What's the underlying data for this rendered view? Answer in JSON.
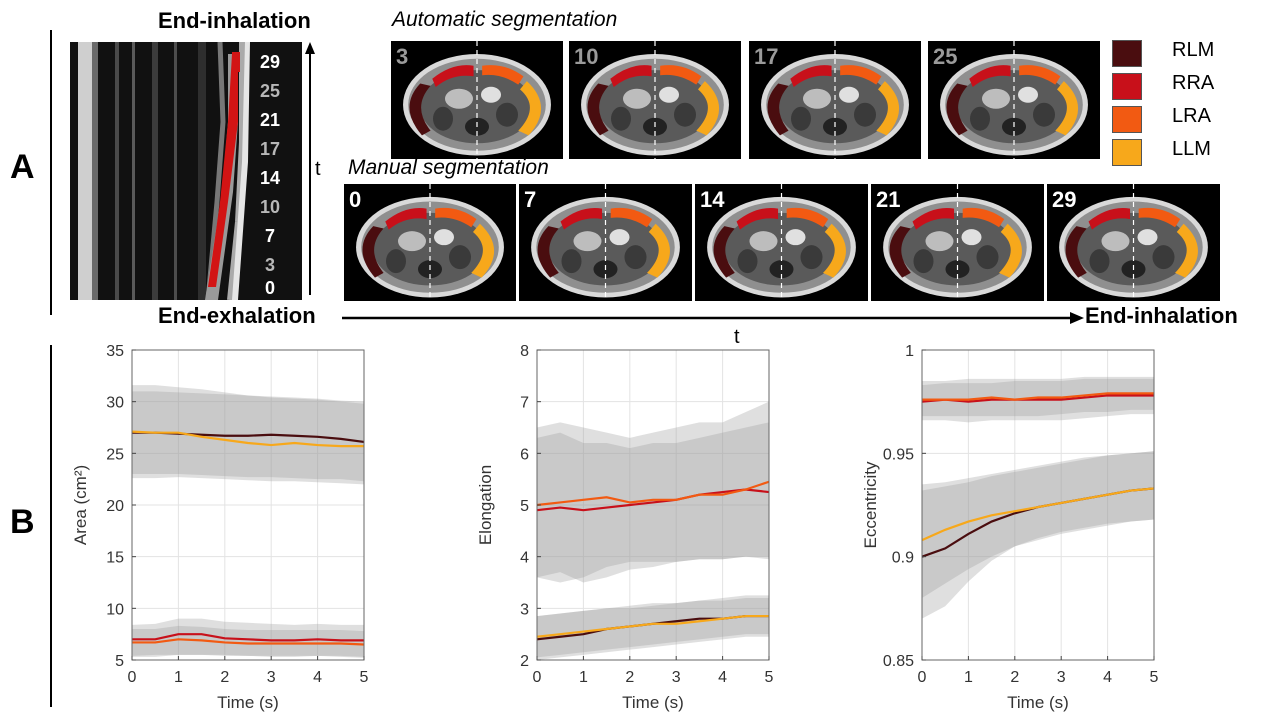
{
  "panels": {
    "a": "A",
    "b": "B"
  },
  "panel_a": {
    "top_label": "End-inhalation",
    "bottom_left_label": "End-exhalation",
    "bottom_right_label": "End-inhalation",
    "vertical_axis_label": "t",
    "horizontal_axis_label": "t",
    "mmode_frame_labels": [
      {
        "text": "29",
        "bold": true
      },
      {
        "text": "25",
        "bold": false
      },
      {
        "text": "21",
        "bold": true
      },
      {
        "text": "17",
        "bold": false
      },
      {
        "text": "14",
        "bold": true
      },
      {
        "text": "10",
        "bold": false
      },
      {
        "text": "7",
        "bold": true
      },
      {
        "text": "3",
        "bold": false
      },
      {
        "text": "0",
        "bold": true
      }
    ],
    "automatic_title": "Automatic segmentation",
    "manual_title": "Manual segmentation",
    "automatic_frames": [
      "3",
      "10",
      "17",
      "25"
    ],
    "manual_frames": [
      "0",
      "7",
      "14",
      "21",
      "29"
    ],
    "automatic_frame_number_color": "#9a9a9a",
    "manual_frame_number_color": "#ffffff",
    "legend": [
      {
        "label": "RLM",
        "color": "#4a0d0f"
      },
      {
        "label": "RRA",
        "color": "#c8101a"
      },
      {
        "label": "LRA",
        "color": "#f25a12"
      },
      {
        "label": "LLM",
        "color": "#f7a81b"
      }
    ]
  },
  "chart_data": [
    {
      "type": "line",
      "xlabel": "Time (s)",
      "ylabel": "Area (cm²)",
      "xlim": [
        0,
        5
      ],
      "ylim": [
        5,
        35
      ],
      "xticks": [
        "0",
        "1",
        "2",
        "3",
        "4",
        "5"
      ],
      "yticks": [
        "5",
        "10",
        "15",
        "20",
        "25",
        "30",
        "35"
      ],
      "grid": true,
      "x": [
        0,
        0.5,
        1,
        1.5,
        2,
        2.5,
        3,
        3.5,
        4,
        4.5,
        5
      ],
      "series": [
        {
          "name": "RLM",
          "color": "#4a0d0f",
          "values": [
            27.0,
            27.0,
            26.9,
            26.8,
            26.7,
            26.7,
            26.8,
            26.7,
            26.6,
            26.4,
            26.1
          ],
          "band_lower": [
            23.0,
            23.0,
            23.0,
            22.9,
            22.8,
            22.7,
            22.7,
            22.6,
            22.5,
            22.5,
            22.3
          ],
          "band_upper": [
            31.0,
            31.0,
            30.9,
            30.8,
            30.7,
            30.6,
            30.5,
            30.4,
            30.3,
            30.1,
            30.0
          ]
        },
        {
          "name": "LLM",
          "color": "#f7a81b",
          "values": [
            27.1,
            27.0,
            27.0,
            26.6,
            26.3,
            26.0,
            25.8,
            26.0,
            25.8,
            25.7,
            25.7
          ],
          "band_lower": [
            22.6,
            22.6,
            22.7,
            22.6,
            22.5,
            22.4,
            22.3,
            22.3,
            22.2,
            22.1,
            22.0
          ],
          "band_upper": [
            31.6,
            31.6,
            31.4,
            31.2,
            30.9,
            30.6,
            30.4,
            30.3,
            30.2,
            30.0,
            29.8
          ]
        },
        {
          "name": "RRA",
          "color": "#c8101a",
          "values": [
            7.0,
            7.0,
            7.5,
            7.5,
            7.1,
            7.0,
            6.9,
            6.9,
            7.0,
            6.9,
            6.9
          ],
          "band_lower": [
            5.3,
            5.3,
            5.5,
            5.5,
            5.4,
            5.4,
            5.3,
            5.3,
            5.4,
            5.3,
            5.2
          ],
          "band_upper": [
            8.4,
            8.5,
            9.0,
            9.0,
            8.7,
            8.6,
            8.5,
            8.4,
            8.5,
            8.4,
            8.4
          ]
        },
        {
          "name": "LRA",
          "color": "#f25a12",
          "values": [
            6.7,
            6.7,
            7.0,
            6.9,
            6.7,
            6.6,
            6.6,
            6.6,
            6.6,
            6.6,
            6.5
          ],
          "band_lower": [
            5.4,
            5.5,
            5.5,
            5.5,
            5.5,
            5.4,
            5.4,
            5.4,
            5.4,
            5.4,
            5.3
          ],
          "band_upper": [
            8.0,
            8.0,
            8.3,
            8.2,
            8.0,
            7.9,
            7.9,
            7.9,
            7.9,
            7.9,
            7.8
          ]
        }
      ]
    },
    {
      "type": "line",
      "xlabel": "Time (s)",
      "ylabel": "Elongation",
      "xlim": [
        0,
        5
      ],
      "ylim": [
        2,
        8
      ],
      "xticks": [
        "0",
        "1",
        "2",
        "3",
        "4",
        "5"
      ],
      "yticks": [
        "2",
        "3",
        "4",
        "5",
        "6",
        "7",
        "8"
      ],
      "grid": true,
      "x": [
        0,
        0.5,
        1,
        1.5,
        2,
        2.5,
        3,
        3.5,
        4,
        4.5,
        5
      ],
      "series": [
        {
          "name": "RRA",
          "color": "#c8101a",
          "values": [
            4.9,
            4.95,
            4.9,
            4.95,
            5.0,
            5.05,
            5.1,
            5.2,
            5.25,
            5.3,
            5.25
          ],
          "band_lower": [
            3.6,
            3.5,
            3.6,
            3.8,
            3.9,
            3.9,
            3.9,
            3.95,
            3.95,
            4.0,
            3.95
          ],
          "band_upper": [
            6.3,
            6.4,
            6.2,
            6.2,
            6.1,
            6.2,
            6.2,
            6.3,
            6.4,
            6.5,
            6.6
          ]
        },
        {
          "name": "LRA",
          "color": "#f25a12",
          "values": [
            5.0,
            5.05,
            5.1,
            5.15,
            5.05,
            5.1,
            5.1,
            5.2,
            5.2,
            5.3,
            5.45
          ],
          "band_lower": [
            3.6,
            3.7,
            3.5,
            3.6,
            3.75,
            3.8,
            3.9,
            3.95,
            3.95,
            4.0,
            4.0
          ],
          "band_upper": [
            6.5,
            6.6,
            6.5,
            6.4,
            6.3,
            6.4,
            6.5,
            6.6,
            6.6,
            6.8,
            7.0
          ]
        },
        {
          "name": "RLM",
          "color": "#4a0d0f",
          "values": [
            2.4,
            2.45,
            2.5,
            2.6,
            2.65,
            2.7,
            2.75,
            2.8,
            2.8,
            2.85,
            2.85
          ],
          "band_lower": [
            2.0,
            2.05,
            2.1,
            2.15,
            2.2,
            2.25,
            2.3,
            2.35,
            2.4,
            2.45,
            2.45
          ],
          "band_upper": [
            2.85,
            2.9,
            2.95,
            3.0,
            3.0,
            3.05,
            3.1,
            3.15,
            3.15,
            3.2,
            3.2
          ]
        },
        {
          "name": "LLM",
          "color": "#f7a81b",
          "values": [
            2.45,
            2.5,
            2.55,
            2.6,
            2.65,
            2.7,
            2.7,
            2.75,
            2.8,
            2.85,
            2.85
          ],
          "band_lower": [
            2.05,
            2.1,
            2.15,
            2.2,
            2.25,
            2.3,
            2.35,
            2.4,
            2.45,
            2.5,
            2.5
          ],
          "band_upper": [
            2.85,
            2.9,
            2.95,
            3.0,
            3.05,
            3.1,
            3.1,
            3.15,
            3.2,
            3.25,
            3.25
          ]
        }
      ]
    },
    {
      "type": "line",
      "xlabel": "Time (s)",
      "ylabel": "Eccentricity",
      "xlim": [
        0,
        5
      ],
      "ylim": [
        0.85,
        1
      ],
      "xticks": [
        "0",
        "1",
        "2",
        "3",
        "4",
        "5"
      ],
      "yticks": [
        "0.85",
        "0.9",
        "0.95",
        "1"
      ],
      "grid": true,
      "x": [
        0,
        0.5,
        1,
        1.5,
        2,
        2.5,
        3,
        3.5,
        4,
        4.5,
        5
      ],
      "series": [
        {
          "name": "RRA",
          "color": "#c8101a",
          "values": [
            0.975,
            0.976,
            0.975,
            0.976,
            0.976,
            0.976,
            0.976,
            0.977,
            0.978,
            0.978,
            0.978
          ],
          "band_lower": [
            0.966,
            0.966,
            0.965,
            0.966,
            0.966,
            0.966,
            0.966,
            0.967,
            0.968,
            0.969,
            0.969
          ],
          "band_upper": [
            0.983,
            0.984,
            0.984,
            0.984,
            0.985,
            0.985,
            0.985,
            0.986,
            0.986,
            0.986,
            0.986
          ]
        },
        {
          "name": "LRA",
          "color": "#f25a12",
          "values": [
            0.976,
            0.976,
            0.976,
            0.977,
            0.976,
            0.977,
            0.977,
            0.978,
            0.979,
            0.979,
            0.979
          ],
          "band_lower": [
            0.968,
            0.968,
            0.968,
            0.968,
            0.968,
            0.968,
            0.969,
            0.97,
            0.97,
            0.971,
            0.971
          ],
          "band_upper": [
            0.985,
            0.985,
            0.986,
            0.986,
            0.986,
            0.986,
            0.986,
            0.987,
            0.987,
            0.987,
            0.987
          ]
        },
        {
          "name": "RLM",
          "color": "#4a0d0f",
          "values": [
            0.9,
            0.904,
            0.911,
            0.917,
            0.921,
            0.924,
            0.926,
            0.928,
            0.93,
            0.932,
            0.933
          ],
          "band_lower": [
            0.87,
            0.876,
            0.888,
            0.898,
            0.905,
            0.909,
            0.912,
            0.914,
            0.916,
            0.917,
            0.918
          ],
          "band_upper": [
            0.932,
            0.934,
            0.936,
            0.939,
            0.941,
            0.943,
            0.945,
            0.947,
            0.949,
            0.95,
            0.951
          ]
        },
        {
          "name": "LLM",
          "color": "#f7a81b",
          "values": [
            0.908,
            0.913,
            0.917,
            0.92,
            0.922,
            0.924,
            0.926,
            0.928,
            0.93,
            0.932,
            0.933
          ],
          "band_lower": [
            0.88,
            0.887,
            0.894,
            0.9,
            0.905,
            0.908,
            0.911,
            0.913,
            0.915,
            0.917,
            0.918
          ],
          "band_upper": [
            0.935,
            0.936,
            0.938,
            0.94,
            0.942,
            0.944,
            0.946,
            0.948,
            0.949,
            0.95,
            0.951
          ]
        }
      ]
    }
  ]
}
